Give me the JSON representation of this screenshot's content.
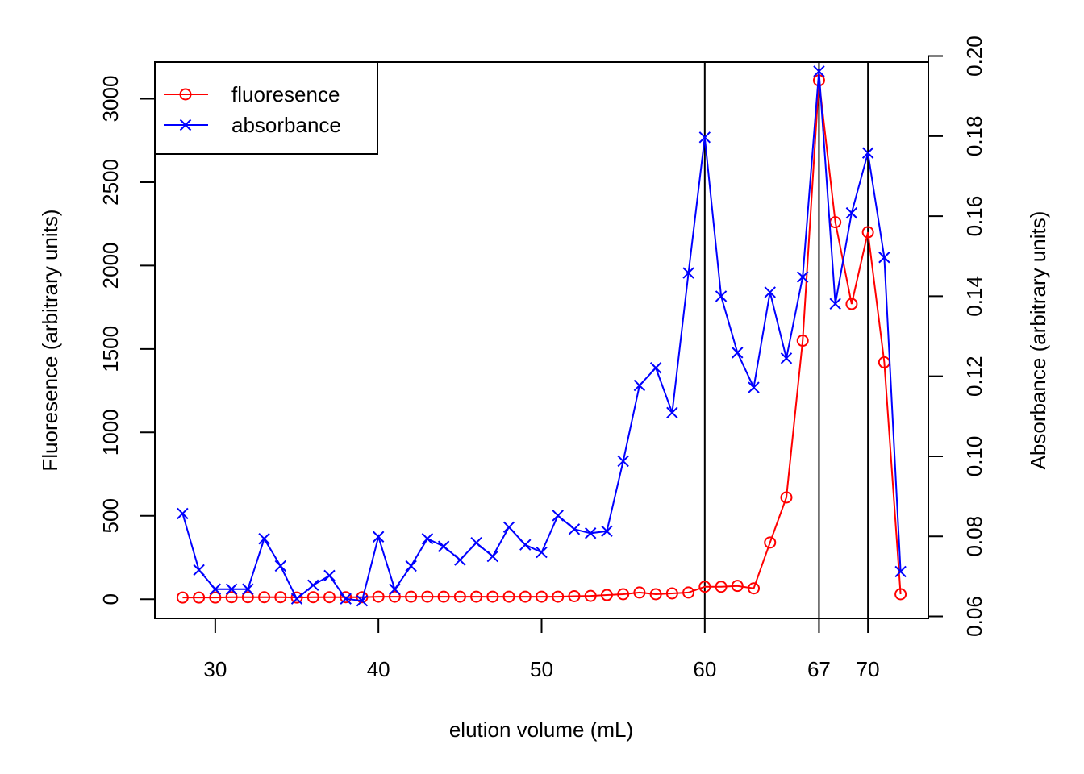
{
  "chart_data": {
    "type": "line",
    "title": "",
    "xlabel": "elution volume (mL)",
    "ylabel_left": "Fluoresence (arbitrary units)",
    "ylabel_right": "Absorbance (arbitrary units)",
    "x_ticks": [
      30,
      40,
      50,
      60,
      67,
      70
    ],
    "x_range": [
      26.3,
      73.7
    ],
    "y_left_ticks": [
      0,
      500,
      1000,
      1500,
      2000,
      2500,
      3000
    ],
    "y_left_range": [
      -115,
      3220
    ],
    "y_right_ticks": [
      "0.06",
      "0.08",
      "0.10",
      "0.12",
      "0.14",
      "0.16",
      "0.18",
      "0.20"
    ],
    "y_right_range": [
      0.0595,
      0.1985
    ],
    "vlines": [
      60,
      67,
      70
    ],
    "legend_position": "top-left",
    "grid": false,
    "x": [
      28,
      29,
      30,
      31,
      32,
      33,
      34,
      35,
      36,
      37,
      38,
      39,
      40,
      41,
      42,
      43,
      44,
      45,
      46,
      47,
      48,
      49,
      50,
      51,
      52,
      53,
      54,
      55,
      56,
      57,
      58,
      59,
      60,
      61,
      62,
      63,
      64,
      65,
      66,
      67,
      68,
      69,
      70,
      71,
      72
    ],
    "series": [
      {
        "name": "fluoresence",
        "axis": "left",
        "color": "#ff0000",
        "marker": "circle",
        "values": [
          10,
          10,
          10,
          12,
          12,
          12,
          12,
          10,
          12,
          12,
          12,
          12,
          15,
          15,
          15,
          15,
          15,
          15,
          15,
          15,
          15,
          15,
          15,
          15,
          18,
          20,
          25,
          30,
          40,
          30,
          35,
          40,
          75,
          75,
          80,
          65,
          340,
          610,
          1550,
          3110,
          2260,
          1770,
          2200,
          1420,
          30
        ]
      },
      {
        "name": "absorbance",
        "axis": "right",
        "color": "#0000ff",
        "marker": "x",
        "values": [
          0.0857,
          0.0716,
          0.0668,
          0.0668,
          0.0668,
          0.0794,
          0.0726,
          0.0644,
          0.0678,
          0.0702,
          0.0644,
          0.0639,
          0.0799,
          0.0668,
          0.0726,
          0.0794,
          0.0775,
          0.0741,
          0.0784,
          0.075,
          0.0823,
          0.0779,
          0.076,
          0.0852,
          0.0818,
          0.0808,
          0.0813,
          0.0988,
          0.1177,
          0.1221,
          0.1109,
          0.1458,
          0.1797,
          0.14,
          0.1259,
          0.1172,
          0.141,
          0.1245,
          0.1448,
          0.1962,
          0.1381,
          0.1608,
          0.1758,
          0.1497,
          0.0712
        ]
      }
    ]
  }
}
